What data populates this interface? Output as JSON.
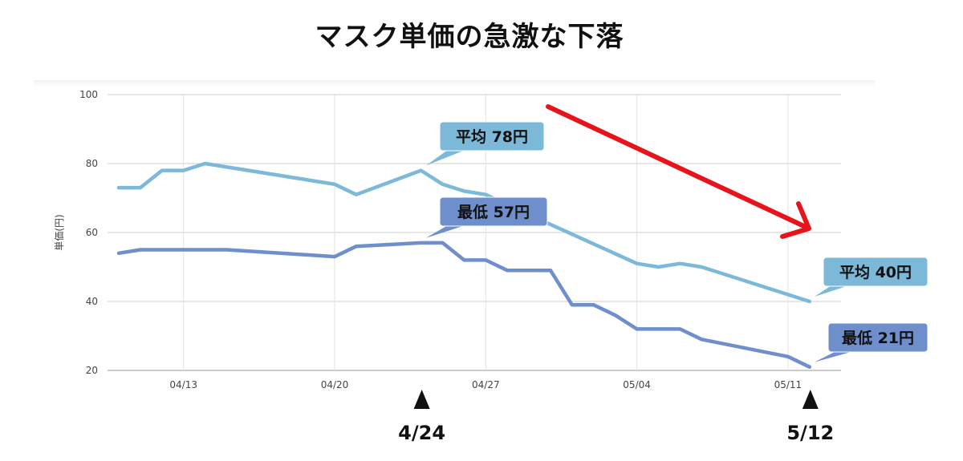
{
  "chart_data": {
    "type": "line",
    "title": "マスク単価の急激な下落",
    "ylabel": "単価(円)",
    "ylim": [
      20,
      100
    ],
    "yticks": [
      20,
      40,
      60,
      80,
      100
    ],
    "x_axis": {
      "type": "date",
      "start": "04/10",
      "end": "05/12",
      "tick_labels": [
        "04/13",
        "04/20",
        "04/27",
        "05/04",
        "05/11"
      ]
    },
    "grid": true,
    "series": [
      {
        "key": "average",
        "color": "#7cb9d9",
        "points": [
          {
            "x": "04/10",
            "y": 73
          },
          {
            "x": "04/11",
            "y": 73
          },
          {
            "x": "04/12",
            "y": 78
          },
          {
            "x": "04/13",
            "y": 78
          },
          {
            "x": "04/14",
            "y": 80
          },
          {
            "x": "04/20",
            "y": 74
          },
          {
            "x": "04/21",
            "y": 71
          },
          {
            "x": "04/24",
            "y": 78
          },
          {
            "x": "04/25",
            "y": 74
          },
          {
            "x": "04/26",
            "y": 72
          },
          {
            "x": "04/27",
            "y": 71
          },
          {
            "x": "04/28",
            "y": 68
          },
          {
            "x": "05/04",
            "y": 51
          },
          {
            "x": "05/05",
            "y": 50
          },
          {
            "x": "05/06",
            "y": 51
          },
          {
            "x": "05/07",
            "y": 50
          },
          {
            "x": "05/12",
            "y": 40
          }
        ]
      },
      {
        "key": "lowest",
        "color": "#6e8fcc",
        "points": [
          {
            "x": "04/10",
            "y": 54
          },
          {
            "x": "04/11",
            "y": 55
          },
          {
            "x": "04/15",
            "y": 55
          },
          {
            "x": "04/20",
            "y": 53
          },
          {
            "x": "04/21",
            "y": 56
          },
          {
            "x": "04/24",
            "y": 57
          },
          {
            "x": "04/25",
            "y": 57
          },
          {
            "x": "04/26",
            "y": 52
          },
          {
            "x": "04/27",
            "y": 52
          },
          {
            "x": "04/28",
            "y": 49
          },
          {
            "x": "04/30",
            "y": 49
          },
          {
            "x": "05/01",
            "y": 39
          },
          {
            "x": "05/02",
            "y": 39
          },
          {
            "x": "05/03",
            "y": 36
          },
          {
            "x": "05/04",
            "y": 32
          },
          {
            "x": "05/06",
            "y": 32
          },
          {
            "x": "05/07",
            "y": 29
          },
          {
            "x": "05/11",
            "y": 24
          },
          {
            "x": "05/12",
            "y": 21
          }
        ]
      }
    ],
    "annotations": [
      {
        "text": "平均 78円",
        "point": {
          "x": "04/24",
          "y": 78
        },
        "series": "average"
      },
      {
        "text": "最低  57円",
        "point": {
          "x": "04/24",
          "y": 57
        },
        "series": "lowest"
      },
      {
        "text": "平均 40円",
        "point": {
          "x": "05/12",
          "y": 40
        },
        "series": "average"
      },
      {
        "text": "最低 21円",
        "point": {
          "x": "05/12",
          "y": 21
        },
        "series": "lowest"
      }
    ],
    "markers": [
      {
        "label": "4/24",
        "x": "04/24"
      },
      {
        "label": "5/12",
        "x": "05/12"
      }
    ],
    "trend_arrow": {
      "color": "#e8141c",
      "direction": "down"
    }
  }
}
